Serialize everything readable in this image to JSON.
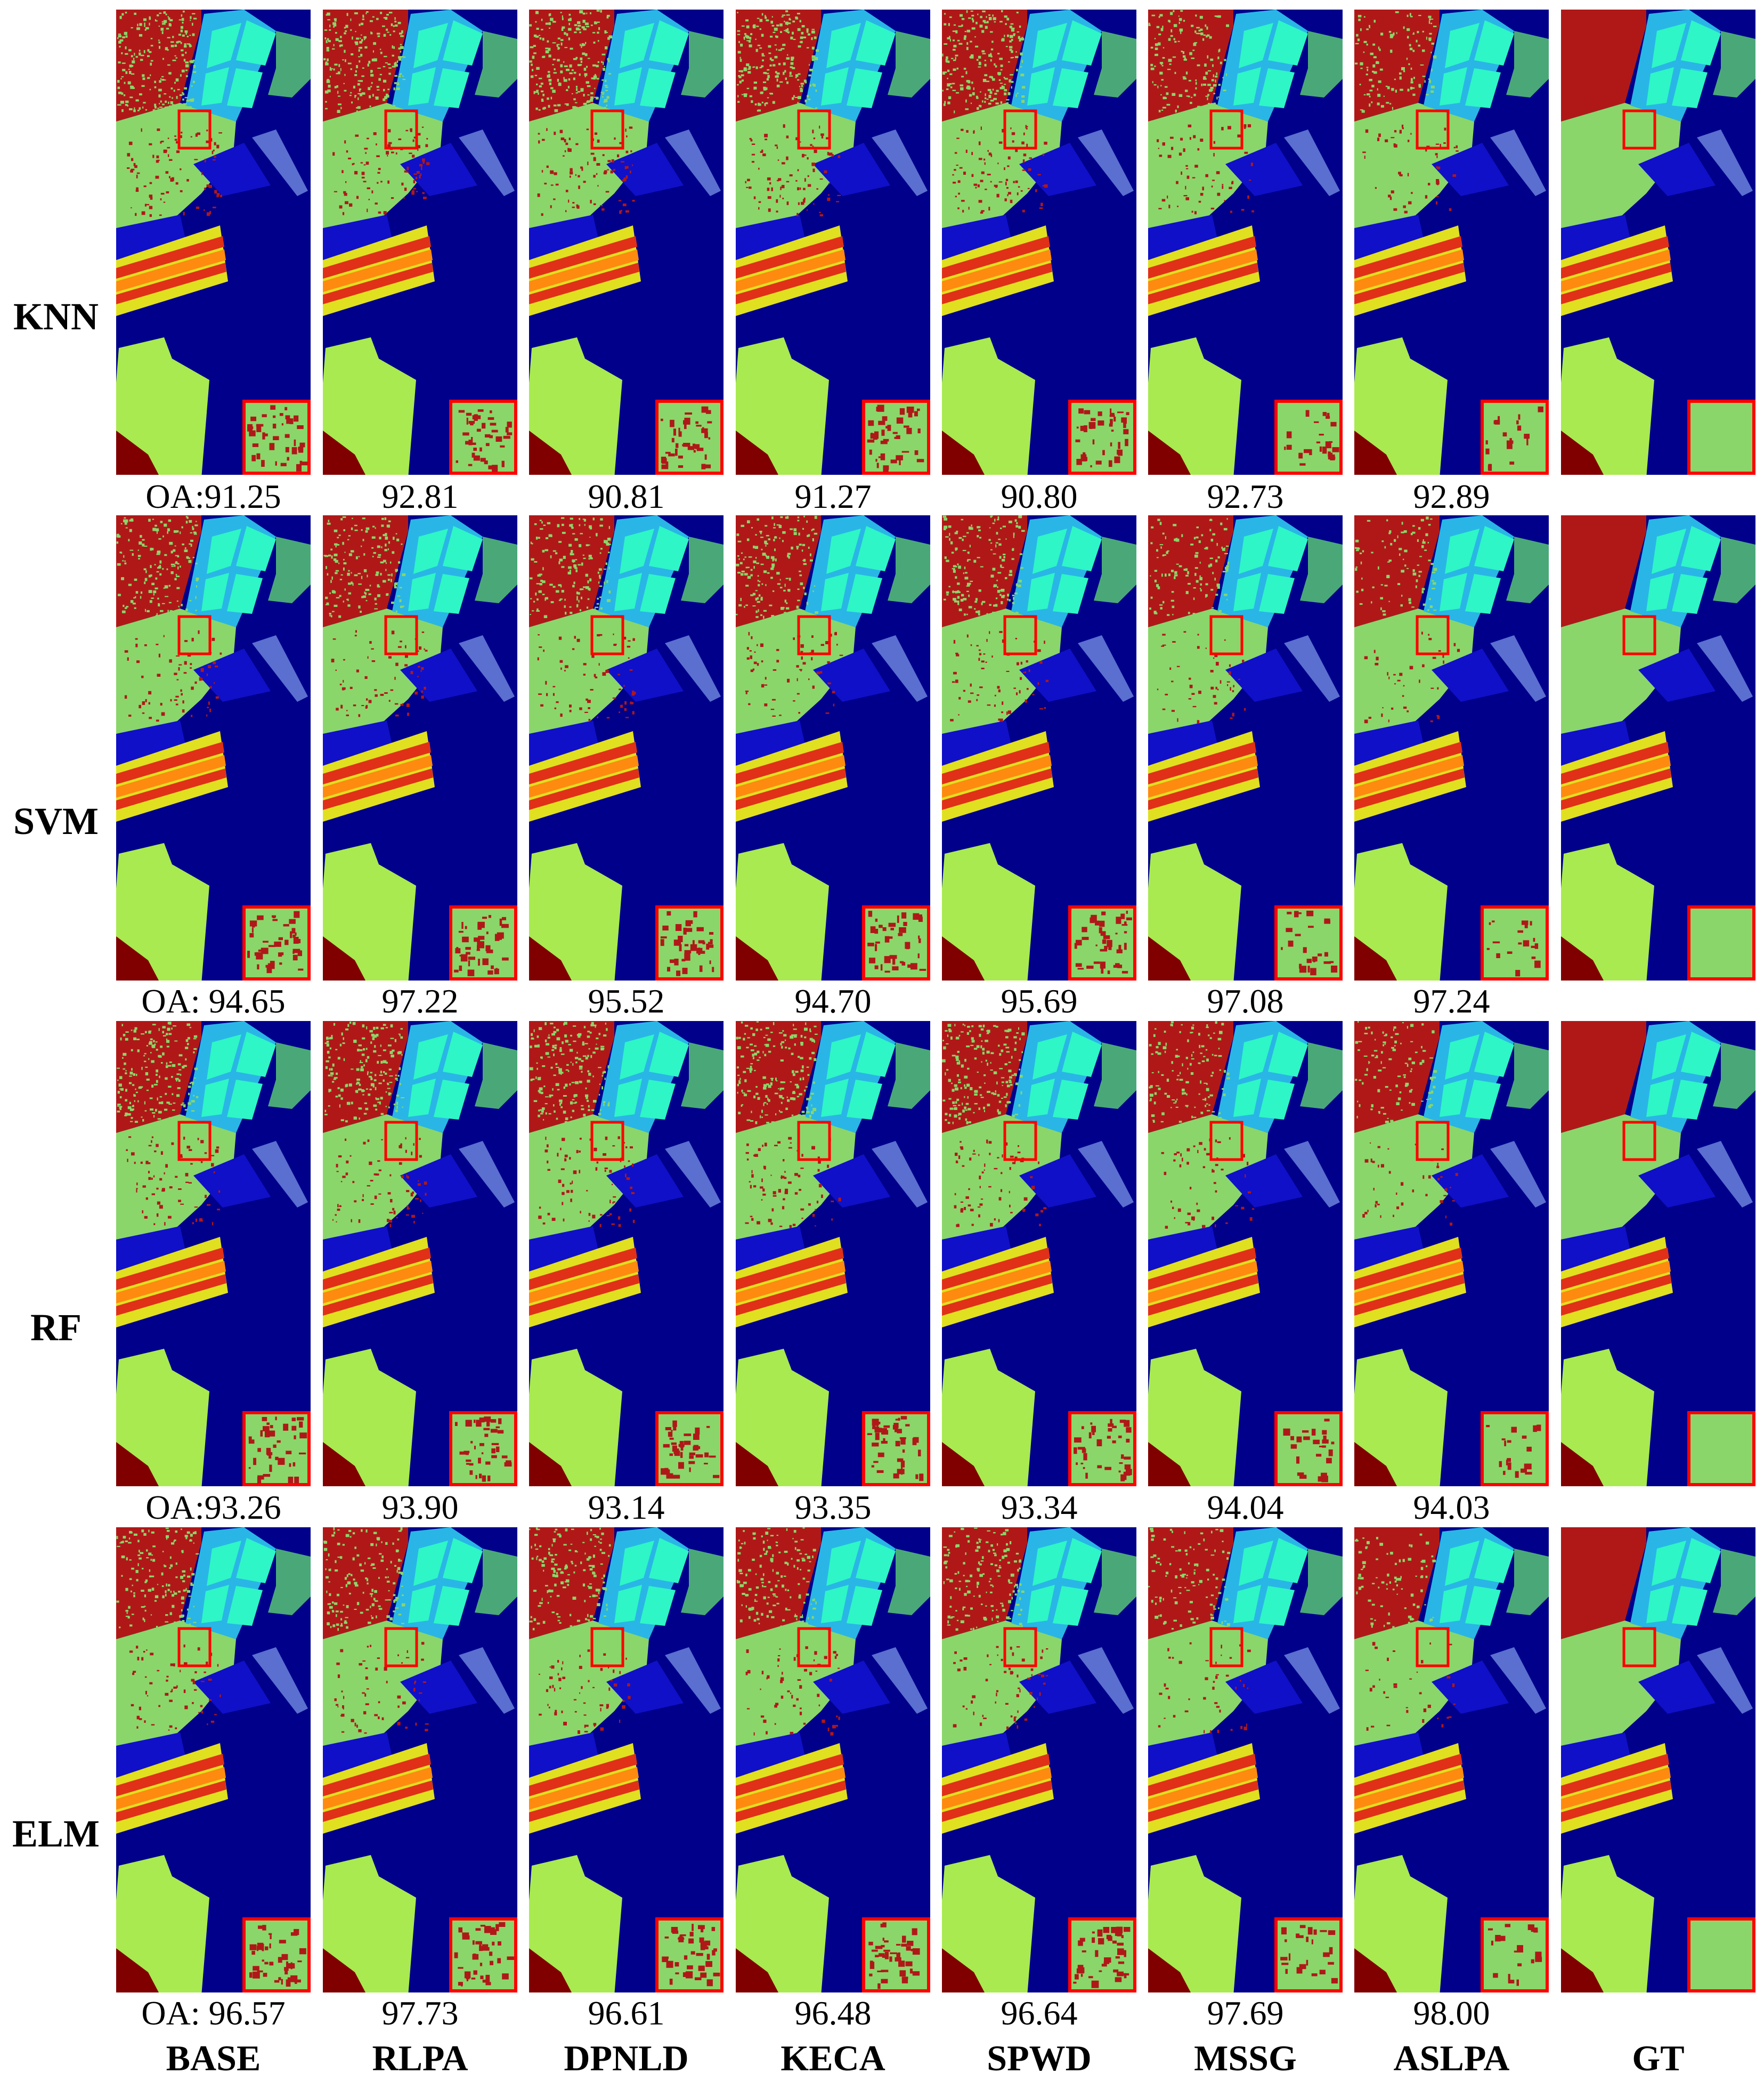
{
  "rows": [
    {
      "method": "KNN",
      "oa": [
        "OA:91.25",
        "92.81",
        "90.81",
        "91.27",
        "90.80",
        "92.73",
        "92.89",
        ""
      ]
    },
    {
      "method": "SVM",
      "oa": [
        "OA: 94.65",
        "97.22",
        "95.52",
        "94.70",
        "95.69",
        "97.08",
        "97.24",
        ""
      ]
    },
    {
      "method": "RF",
      "oa": [
        "OA:93.26",
        "93.90",
        "93.14",
        "93.35",
        "93.34",
        "94.04",
        "94.03",
        ""
      ]
    },
    {
      "method": "ELM",
      "oa": [
        "OA: 96.57",
        "97.73",
        "96.61",
        "96.48",
        "96.64",
        "97.69",
        "98.00",
        ""
      ]
    }
  ],
  "columns": [
    "BASE",
    "RLPA",
    "DPNLD",
    "KECA",
    "SPWD",
    "MSSG",
    "ASLPA",
    "GT"
  ],
  "colors": {
    "background": "#00008b",
    "dark_red": "#b01818",
    "light_green": "#8ad66a",
    "cyan": "#2ef6c6",
    "light_blue": "#29b6e6",
    "teal_green": "#4aa878",
    "slate_blue": "#5a6fd0",
    "blue": "#1010c8",
    "orange": "#ff8a10",
    "yellow": "#e0e020",
    "red": "#e03018",
    "lime": "#a8ea50",
    "maroon": "#800000",
    "highlight_box": "#ff0000"
  }
}
